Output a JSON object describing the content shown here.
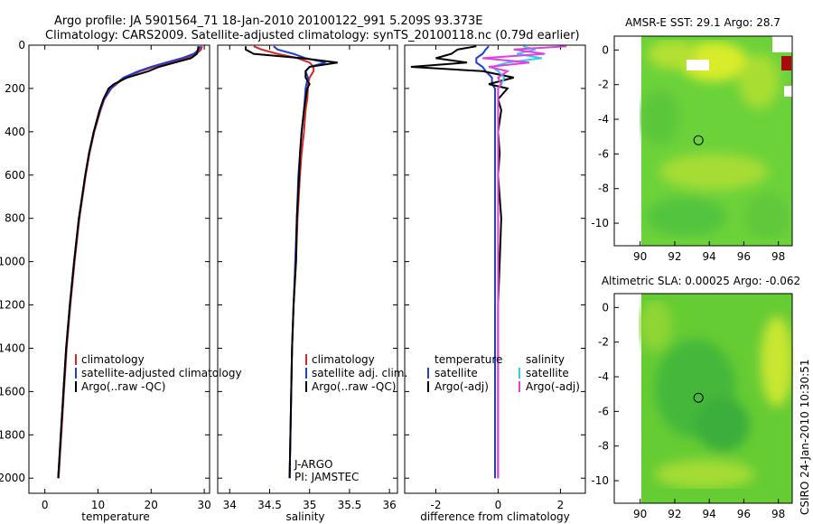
{
  "header": {
    "line1": "Argo profile: JA 5901564_71 18-Jan-2010 20100122_991 5.209S 93.373E",
    "line2": "Climatology: CARS2009. Satellite-adjusted climatology: synTS_20100118.nc (0.79d earlier)"
  },
  "side_label": "CSIRO 24-Jan-2010 10:30:51",
  "colors": {
    "climatology": "#d62728",
    "satellite": "#1f3fd6",
    "argo": "#000000",
    "sat_salinity": "#33ccee",
    "argo_adj_salinity": "#e040e0"
  },
  "chart_data": [
    {
      "type": "line",
      "id": "temperature",
      "xlabel": "temperature",
      "ylabel": "",
      "xlim": [
        -3,
        31
      ],
      "ylim": [
        2070,
        0
      ],
      "xticks": [
        "0",
        "10",
        "20",
        "30"
      ],
      "xtick_values": [
        0,
        10,
        20,
        30
      ],
      "yticks": [
        "0",
        "200",
        "400",
        "600",
        "800",
        "1000",
        "1200",
        "1400",
        "1600",
        "1800",
        "2000"
      ],
      "ytick_values": [
        0,
        200,
        400,
        600,
        800,
        1000,
        1200,
        1400,
        1600,
        1800,
        2000
      ],
      "depth": [
        5,
        20,
        40,
        60,
        80,
        100,
        120,
        150,
        180,
        200,
        250,
        300,
        400,
        500,
        600,
        800,
        1000,
        1200,
        1400,
        1600,
        1800,
        2000
      ],
      "series": [
        {
          "name": "climatology",
          "color_key": "climatology",
          "values": [
            29.6,
            29.4,
            28.5,
            26.5,
            23.5,
            20.5,
            18,
            15,
            13.5,
            12.5,
            11.2,
            10.5,
            9.3,
            8.4,
            7.7,
            6.5,
            5.6,
            4.8,
            4.1,
            3.6,
            3.1,
            2.6
          ]
        },
        {
          "name": "satellite-adjusted climatology",
          "color_key": "satellite",
          "values": [
            29.3,
            29.0,
            28.0,
            25.8,
            22.8,
            20.0,
            17.6,
            14.8,
            13.3,
            12.4,
            11.1,
            10.4,
            9.2,
            8.3,
            7.6,
            6.4,
            5.5,
            4.7,
            4.0,
            3.5,
            3.0,
            2.5
          ]
        },
        {
          "name": "Argo(..raw -QC)",
          "color_key": "argo",
          "values": [
            28.9,
            28.8,
            28.6,
            27.5,
            24.5,
            21.5,
            19.5,
            15.5,
            13.0,
            12.0,
            11.0,
            10.3,
            9.2,
            8.3,
            7.6,
            6.4,
            5.5,
            4.7,
            4.0,
            3.5,
            3.0,
            2.5
          ]
        }
      ],
      "legend": [
        "climatology",
        "satellite-adjusted climatology",
        "Argo(..raw -QC)"
      ],
      "legend_position": "lower-right"
    },
    {
      "type": "line",
      "id": "salinity",
      "xlabel": "salinity",
      "xlim": [
        33.85,
        36.1
      ],
      "ylim": [
        2070,
        0
      ],
      "xticks": [
        "34",
        "34.5",
        "35",
        "35.5",
        "36"
      ],
      "xtick_values": [
        34,
        34.5,
        35,
        35.5,
        36
      ],
      "depth": [
        5,
        20,
        40,
        60,
        80,
        100,
        120,
        150,
        180,
        200,
        250,
        300,
        400,
        500,
        600,
        800,
        1000,
        1200,
        1400,
        1600,
        1800,
        2000
      ],
      "series": [
        {
          "name": "climatology",
          "color_key": "climatology",
          "values": [
            34.3,
            34.4,
            34.6,
            34.85,
            35.0,
            35.05,
            35.05,
            35.0,
            34.98,
            34.98,
            34.97,
            34.95,
            34.93,
            34.9,
            34.88,
            34.85,
            34.83,
            34.8,
            34.78,
            34.77,
            34.76,
            34.75
          ]
        },
        {
          "name": "satellite adj. clim.",
          "color_key": "satellite",
          "values": [
            34.55,
            34.6,
            34.8,
            34.95,
            35.2,
            35.0,
            34.95,
            34.98,
            34.96,
            34.95,
            34.94,
            34.93,
            34.9,
            34.88,
            34.86,
            34.84,
            34.82,
            34.8,
            34.78,
            34.77,
            34.76,
            34.75
          ]
        },
        {
          "name": "Argo(..raw -QC)",
          "color_key": "argo",
          "values": [
            34.2,
            34.2,
            34.3,
            34.9,
            35.35,
            35.0,
            34.95,
            34.95,
            35.0,
            34.97,
            34.95,
            34.93,
            34.9,
            34.88,
            34.87,
            34.84,
            34.83,
            34.8,
            34.78,
            34.77,
            34.76,
            34.75
          ]
        }
      ],
      "legend": [
        "climatology",
        "satellite adj. clim.",
        "Argo(..raw -QC)"
      ],
      "legend_position": "lower-right",
      "annotation": [
        "J-ARGO",
        "PI: JAMSTEC"
      ]
    },
    {
      "type": "line",
      "id": "difference",
      "xlabel": "difference from climatology",
      "xlim": [
        -3,
        2.8
      ],
      "ylim": [
        2070,
        0
      ],
      "xticks": [
        "-2",
        "0",
        "2"
      ],
      "xtick_values": [
        -2,
        0,
        2
      ],
      "depth": [
        5,
        20,
        40,
        60,
        80,
        100,
        120,
        150,
        180,
        200,
        250,
        300,
        400,
        500,
        600,
        800,
        1000,
        1200,
        1400,
        1600,
        1800,
        2000
      ],
      "series": [
        {
          "name": "temperature satellite",
          "color_key": "satellite",
          "values": [
            -0.3,
            -0.4,
            -0.5,
            -0.7,
            -0.7,
            -0.5,
            -0.4,
            -0.2,
            -0.2,
            -0.1,
            -0.1,
            -0.1,
            -0.1,
            -0.1,
            -0.1,
            -0.1,
            -0.1,
            -0.1,
            -0.1,
            -0.1,
            -0.1,
            -0.1
          ]
        },
        {
          "name": "temperature Argo(-adj)",
          "color_key": "argo",
          "values": [
            -0.7,
            -1.3,
            -1.5,
            -2.0,
            -1.0,
            -2.8,
            -0.5,
            0.5,
            -0.3,
            0.3,
            0.0,
            0.1,
            0.0,
            0.05,
            0.0,
            0.1,
            0.05,
            0.0,
            0.0,
            0.0,
            0.0,
            0.0
          ]
        },
        {
          "name": "salinity satellite",
          "color_key": "sat_salinity",
          "values": [
            0.8,
            1.2,
            0.6,
            1.4,
            0.3,
            -0.2,
            0.0,
            0.2,
            0.1,
            0.0,
            0.0,
            0.0,
            0.0,
            0.0,
            0.0,
            0.0,
            0.0,
            0.0,
            0.0,
            0.0,
            0.0,
            0.0
          ]
        },
        {
          "name": "salinity Argo(-adj)",
          "color_key": "argo_adj_salinity",
          "values": [
            2.2,
            0.5,
            1.5,
            -0.5,
            1.0,
            -0.3,
            0.3,
            0.0,
            0.1,
            0.0,
            0.0,
            0.0,
            0.0,
            0.0,
            0.0,
            0.0,
            0.0,
            0.0,
            0.0,
            0.0,
            0.0,
            0.0
          ]
        }
      ],
      "legend_headers": [
        "temperature",
        "salinity"
      ],
      "legend": [
        "satellite",
        "Argo(-adj)",
        "satellite",
        "Argo(-adj)"
      ],
      "legend_position": "lower-center"
    },
    {
      "type": "heatmap",
      "id": "sst",
      "title": "AMSR-E SST: 29.1  Argo: 28.7",
      "xlim": [
        88.5,
        98.8
      ],
      "ylim": [
        -11.3,
        0.8
      ],
      "xticks": [
        "90",
        "92",
        "94",
        "96",
        "98"
      ],
      "xtick_values": [
        90,
        92,
        94,
        96,
        98
      ],
      "yticks": [
        "0",
        "-2",
        "-4",
        "-6",
        "-8",
        "-10"
      ],
      "ytick_values": [
        0,
        -2,
        -4,
        -6,
        -8,
        -10
      ],
      "argo_position": [
        93.373,
        -5.209
      ]
    },
    {
      "type": "heatmap",
      "id": "sla",
      "title": "Altimetric SLA: 0.00025  Argo: -0.062",
      "xlim": [
        88.5,
        98.8
      ],
      "ylim": [
        -11.3,
        0.8
      ],
      "xticks": [
        "90",
        "92",
        "94",
        "96",
        "98"
      ],
      "xtick_values": [
        90,
        92,
        94,
        96,
        98
      ],
      "yticks": [
        "0",
        "-2",
        "-4",
        "-6",
        "-8",
        "-10"
      ],
      "ytick_values": [
        0,
        -2,
        -4,
        -6,
        -8,
        -10
      ],
      "argo_position": [
        93.373,
        -5.209
      ]
    }
  ]
}
